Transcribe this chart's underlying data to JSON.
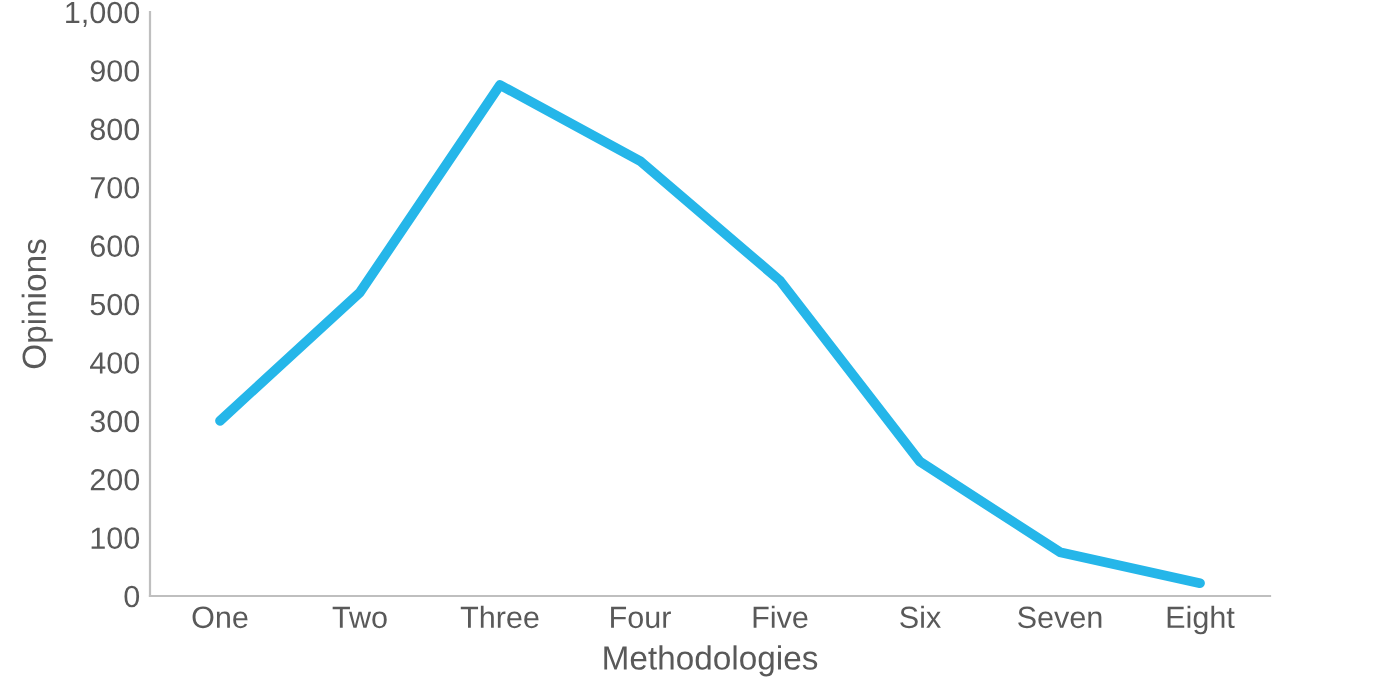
{
  "chart_data": {
    "type": "line",
    "xlabel": "Methodologies",
    "ylabel": "Opinions",
    "categories": [
      "One",
      "Two",
      "Three",
      "Four",
      "Five",
      "Six",
      "Seven",
      "Eight"
    ],
    "series": [
      {
        "color": "#25b6e9",
        "values": [
          300,
          520,
          875,
          745,
          540,
          230,
          75,
          22
        ]
      }
    ],
    "ylim": [
      0,
      1000
    ],
    "yticks": [
      0,
      100,
      200,
      300,
      400,
      500,
      600,
      700,
      800,
      900,
      {
        "value": 1000,
        "label": "1,000"
      }
    ],
    "grid": false,
    "legend": false,
    "marker": "none",
    "line_style": "solid"
  }
}
